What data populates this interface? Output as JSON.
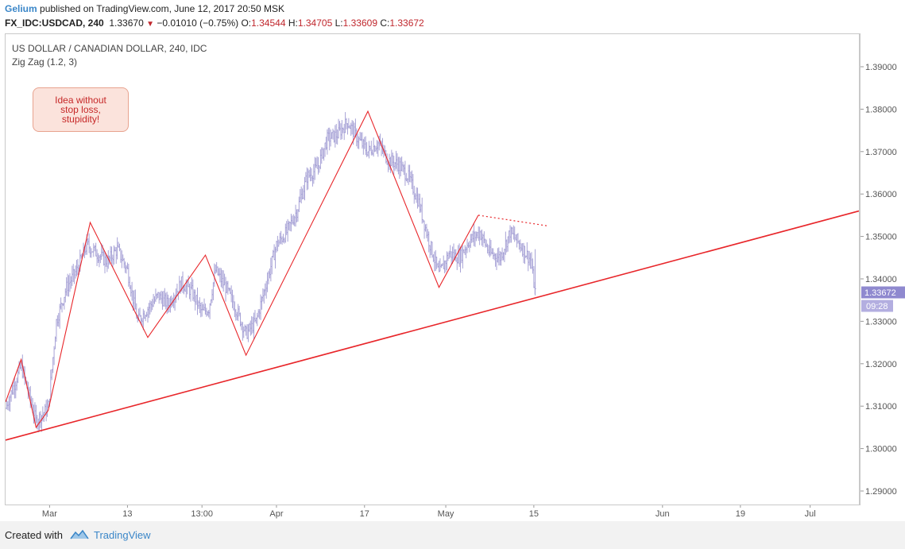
{
  "header": {
    "author": "Gelium",
    "published": " published on TradingView.com, June 12, 2017 20:50 MSK",
    "symbol": "FX_IDC:USDCAD, 240",
    "last": "1.33670",
    "down_arrow": "▼",
    "change": "−0.01010 (−0.75%)",
    "o_label": "O:",
    "o_value": "1.34544",
    "h_label": "H:",
    "h_value": "1.34705",
    "l_label": "L:",
    "l_value": "1.33609",
    "c_label": "C:",
    "c_value": "1.33672"
  },
  "pane": {
    "title": "US DOLLAR / CANADIAN DOLLAR, 240, IDC",
    "indicator": "Zig Zag (1.2, 3)"
  },
  "note": {
    "line1": "Idea without",
    "line2": "stop loss,",
    "line3": "stupidity!"
  },
  "footer": {
    "created": "Created with",
    "brand": "TradingView"
  },
  "colors": {
    "bars": "#a7a2d6",
    "zigzag": "#e8262a",
    "trendline": "#e8262a",
    "price_tag": "#8f89cf"
  },
  "chart_data": {
    "type": "line",
    "title": "US DOLLAR / CANADIAN DOLLAR, 240, IDC",
    "ylim": [
      1.2875,
      1.3955
    ],
    "y_ticks": [
      "1.39000",
      "1.38000",
      "1.37000",
      "1.36000",
      "1.35000",
      "1.34000",
      "1.33000",
      "1.32000",
      "1.31000",
      "1.30000",
      "1.29000"
    ],
    "x_tick_labels": [
      {
        "label": "Mar",
        "day": 21.5
      },
      {
        "label": "13",
        "day": 33
      },
      {
        "label": "13:00",
        "day": 44
      },
      {
        "label": "Apr",
        "day": 55
      },
      {
        "label": "17",
        "day": 68
      },
      {
        "label": "May",
        "day": 80
      },
      {
        "label": "15",
        "day": 93
      },
      {
        "label": "Jun",
        "day": 112
      },
      {
        "label": "19",
        "day": 123.5
      },
      {
        "label": "Jul",
        "day": 133.8
      }
    ],
    "x_range_days": [
      15,
      141
    ],
    "current_price": "1.33672",
    "countdown": "09:28",
    "zigzag": [
      [
        15,
        1.311
      ],
      [
        17.3,
        1.321
      ],
      [
        19.5,
        1.305
      ],
      [
        21.3,
        1.309
      ],
      [
        27.5,
        1.3533
      ],
      [
        36,
        1.3262
      ],
      [
        44.5,
        1.3456
      ],
      [
        50.5,
        1.322
      ],
      [
        68.5,
        1.3795
      ],
      [
        79,
        1.338
      ],
      [
        84.8,
        1.355
      ]
    ],
    "trendline": [
      [
        15,
        1.302
      ],
      [
        141,
        1.356
      ]
    ],
    "resistance_dotted": [
      [
        84.8,
        1.355
      ],
      [
        95,
        1.3525
      ]
    ],
    "candles_anchor_path": [
      [
        15,
        1.3095
      ],
      [
        17.3,
        1.3195
      ],
      [
        19.5,
        1.3065
      ],
      [
        21.3,
        1.3095
      ],
      [
        22.5,
        1.33
      ],
      [
        24,
        1.338
      ],
      [
        25.5,
        1.342
      ],
      [
        27,
        1.348
      ],
      [
        28.5,
        1.346
      ],
      [
        30,
        1.344
      ],
      [
        31.5,
        1.347
      ],
      [
        33,
        1.342
      ],
      [
        34.5,
        1.33
      ],
      [
        36,
        1.333
      ],
      [
        37.5,
        1.336
      ],
      [
        39,
        1.334
      ],
      [
        41,
        1.339
      ],
      [
        42.5,
        1.337
      ],
      [
        44,
        1.332
      ],
      [
        45,
        1.333
      ],
      [
        46,
        1.342
      ],
      [
        47.5,
        1.338
      ],
      [
        49,
        1.333
      ],
      [
        50.5,
        1.327
      ],
      [
        52,
        1.33
      ],
      [
        53.5,
        1.339
      ],
      [
        55,
        1.348
      ],
      [
        56.5,
        1.351
      ],
      [
        58,
        1.356
      ],
      [
        59.5,
        1.364
      ],
      [
        61,
        1.366
      ],
      [
        62.5,
        1.373
      ],
      [
        64,
        1.374
      ],
      [
        65.5,
        1.377
      ],
      [
        67,
        1.373
      ],
      [
        68.5,
        1.37
      ],
      [
        70,
        1.372
      ],
      [
        71.5,
        1.368
      ],
      [
        73,
        1.367
      ],
      [
        74.5,
        1.364
      ],
      [
        76,
        1.358
      ],
      [
        77.5,
        1.349
      ],
      [
        79,
        1.341
      ],
      [
        80.5,
        1.346
      ],
      [
        82,
        1.345
      ],
      [
        83.5,
        1.349
      ],
      [
        85,
        1.351
      ],
      [
        86.5,
        1.346
      ],
      [
        88,
        1.345
      ],
      [
        89.5,
        1.351
      ],
      [
        91,
        1.348
      ],
      [
        92.5,
        1.3445
      ],
      [
        93.2,
        1.3367
      ]
    ]
  }
}
